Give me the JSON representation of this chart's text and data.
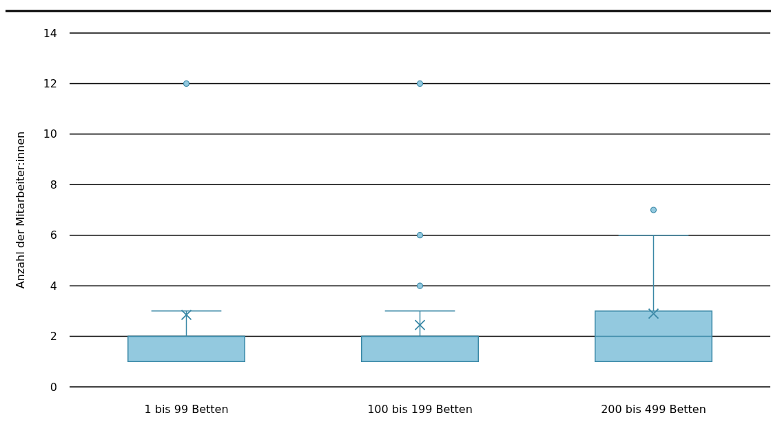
{
  "chart_data": {
    "type": "box",
    "ylabel": "Anzahl der Mitarbeiter:innen",
    "categories": [
      "1 bis 99 Betten",
      "100 bis 199 Betten",
      "200 bis 499 Betten"
    ],
    "color": "#93c9df",
    "ylim": [
      0,
      14
    ],
    "yticks": [
      0,
      2,
      4,
      6,
      8,
      10,
      12,
      14
    ],
    "grid": "y",
    "boxes": [
      {
        "low": 1,
        "q1": 1,
        "median": 2,
        "q3": 2,
        "high": 3,
        "mean": 2.85,
        "outliers": [
          12
        ]
      },
      {
        "low": 1,
        "q1": 1,
        "median": 2,
        "q3": 2,
        "high": 3,
        "mean": 2.45,
        "outliers": [
          4,
          6,
          12
        ]
      },
      {
        "low": 1,
        "q1": 1,
        "median": 2,
        "q3": 3,
        "high": 6,
        "mean": 2.9,
        "outliers": [
          7
        ]
      }
    ]
  }
}
